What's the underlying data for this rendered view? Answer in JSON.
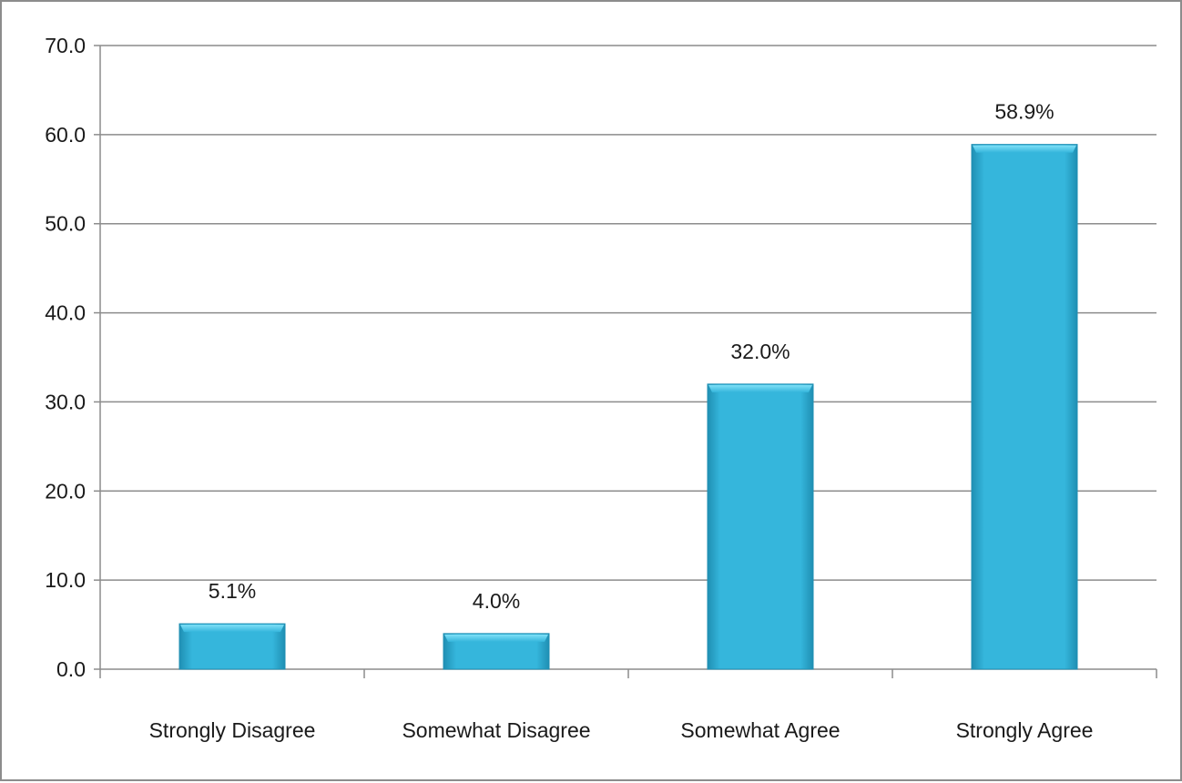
{
  "chart_data": {
    "type": "bar",
    "categories": [
      "Strongly Disagree",
      "Somewhat Disagree",
      "Somewhat Agree",
      "Strongly Agree"
    ],
    "values": [
      5.1,
      4.0,
      32.0,
      58.9
    ],
    "data_labels": [
      "5.1%",
      "4.0%",
      "32.0%",
      "58.9%"
    ],
    "title": "",
    "xlabel": "",
    "ylabel": "",
    "ylim": [
      0,
      70
    ],
    "yticks": [
      0,
      10,
      20,
      30,
      40,
      50,
      60,
      70
    ],
    "ytick_labels": [
      "0.0",
      "10.0",
      "20.0",
      "30.0",
      "40.0",
      "50.0",
      "60.0",
      "70.0"
    ],
    "grid": true,
    "legend": "none",
    "colors": {
      "bar_light": "#5fd3f0",
      "bar_mid": "#35b6dc",
      "bar_dark": "#1f8fb3",
      "bar_top": "#7fe0f7",
      "grid": "#8c8c8c",
      "axis": "#8c8c8c"
    }
  }
}
